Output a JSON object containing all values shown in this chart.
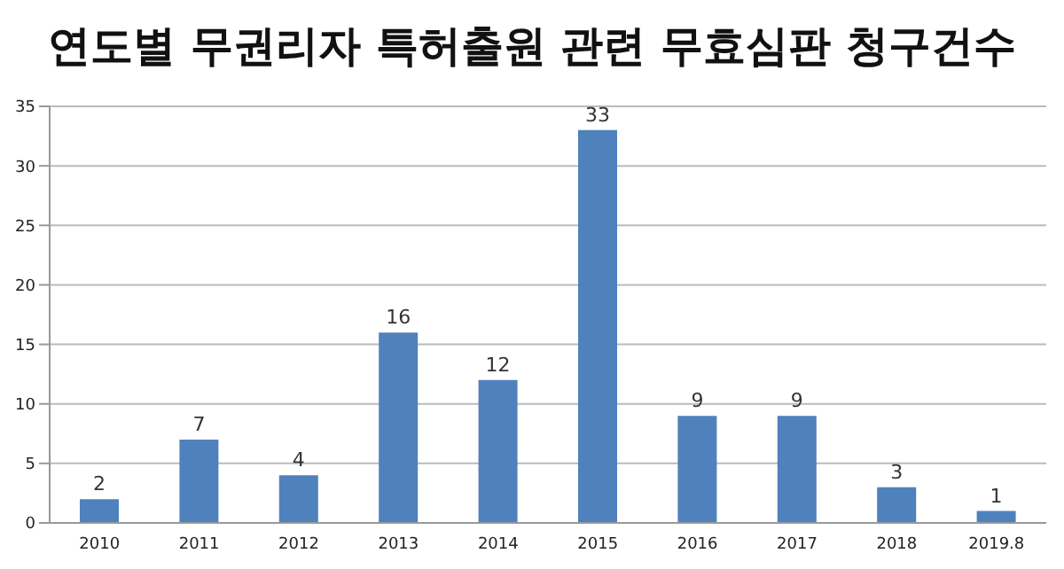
{
  "chart_data": {
    "type": "bar",
    "title": "연도별 무권리자 특허출원 관련 무효심판 청구건수",
    "categories": [
      "2010",
      "2011",
      "2012",
      "2013",
      "2014",
      "2015",
      "2016",
      "2017",
      "2018",
      "2019.8"
    ],
    "values": [
      2,
      7,
      4,
      16,
      12,
      33,
      9,
      9,
      3,
      1
    ],
    "color": "#4f81bd",
    "ylim": [
      0,
      35
    ],
    "yticks": [
      0,
      5,
      10,
      15,
      20,
      25,
      30,
      35
    ],
    "grid": "y",
    "data_labels": true
  }
}
